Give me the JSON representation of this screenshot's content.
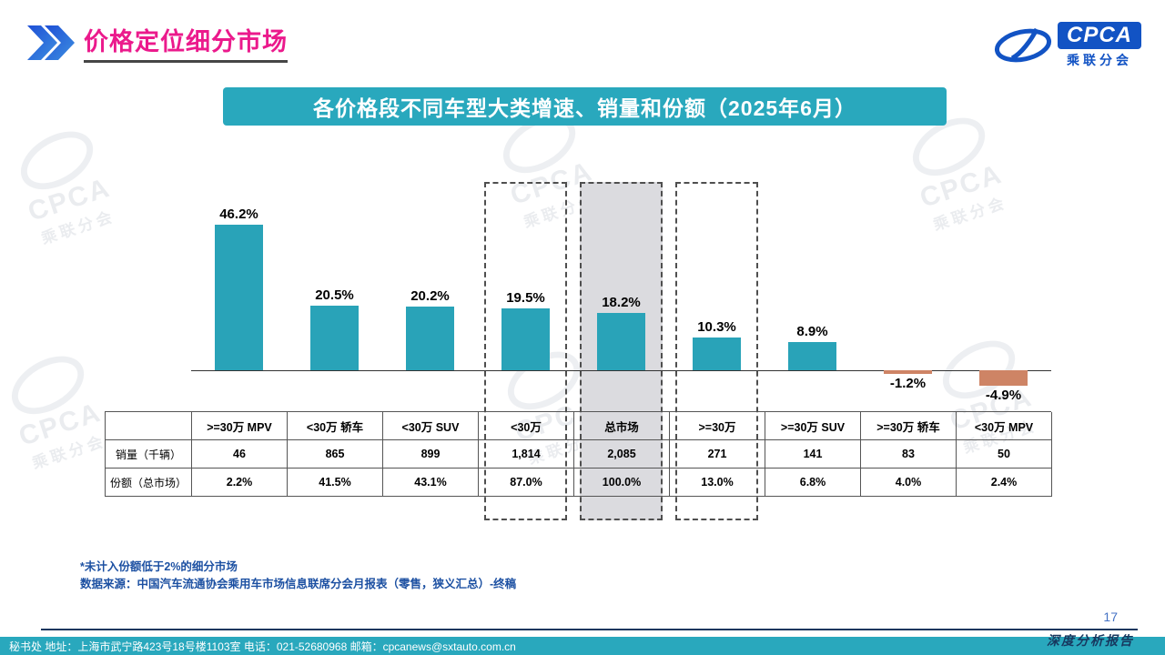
{
  "header": {
    "title": "价格定位细分市场",
    "logo": {
      "name": "CPCA",
      "sub": "乘联分会"
    }
  },
  "banner": {
    "title": "各价格段不同车型大类增速、销量和份额（2025年6月）"
  },
  "chart_data": {
    "type": "bar",
    "title": "各价格段不同车型大类增速、销量和份额（2025年6月）",
    "categories": [
      ">=30万 MPV",
      "<30万 轿车",
      "<30万 SUV",
      "<30万",
      "总市场",
      ">=30万",
      ">=30万 SUV",
      ">=30万 轿车",
      "<30万 MPV"
    ],
    "series": [
      {
        "name": "增速",
        "unit": "%",
        "values": [
          46.2,
          20.5,
          20.2,
          19.5,
          18.2,
          10.3,
          8.9,
          -1.2,
          -4.9
        ]
      }
    ],
    "value_labels": [
      "46.2%",
      "20.5%",
      "20.2%",
      "19.5%",
      "18.2%",
      "10.3%",
      "8.9%",
      "-1.2%",
      "-4.9%"
    ],
    "ylim": [
      -10,
      50
    ],
    "grid": false,
    "legend": false,
    "bar_color": "#29A3B8",
    "negative_bar_color": "#CE8465",
    "highlight_dashed_columns": [
      3,
      4,
      5
    ],
    "highlight_filled_column": 4,
    "highlight_fill_color": "#DBDBDF"
  },
  "table": {
    "row_headers": [
      "销量（千辆）",
      "份额（总市场）"
    ],
    "columns": [
      ">=30万 MPV",
      "<30万 轿车",
      "<30万 SUV",
      "<30万",
      "总市场",
      ">=30万",
      ">=30万 SUV",
      ">=30万 轿车",
      "<30万 MPV"
    ],
    "sales": [
      "46",
      "865",
      "899",
      "1,814",
      "2,085",
      "271",
      "141",
      "83",
      "50"
    ],
    "share": [
      "2.2%",
      "41.5%",
      "43.1%",
      "87.0%",
      "100.0%",
      "13.0%",
      "6.8%",
      "4.0%",
      "2.4%"
    ]
  },
  "footnotes": {
    "line1": "*未计入份额低于2%的细分市场",
    "line2": "数据来源：中国汽车流通协会乘用车市场信息联席分会月报表（零售，狭义汇总）-终稿"
  },
  "footer": {
    "contact": "秘书处  地址：上海市武宁路423号18号楼1103室  电话：021-52680968   邮箱：cpcanews@sxtauto.com.cn",
    "report_label": "深度分析报告",
    "page_number": "17"
  }
}
